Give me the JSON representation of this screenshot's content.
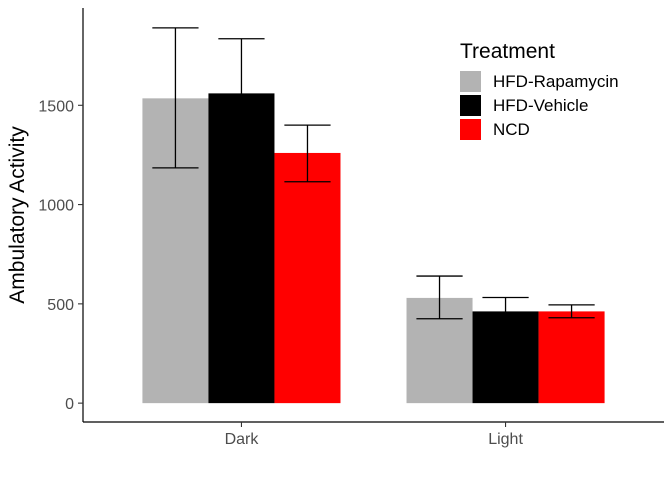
{
  "chart_data": {
    "type": "bar",
    "title": "",
    "xlabel": "",
    "ylabel": "Ambulatory Activity",
    "ylim": [
      -95,
      1990
    ],
    "yticks": [
      0,
      500,
      1000,
      1500
    ],
    "grid": false,
    "legend": {
      "title": "Treatment",
      "position": "top-right-inside"
    },
    "categories": [
      "Dark",
      "Light"
    ],
    "series": [
      {
        "name": "HFD-Rapamycin",
        "color": "#b3b3b3",
        "values": [
          1535,
          530
        ],
        "error_low": [
          1185,
          425
        ],
        "error_high": [
          1890,
          640
        ]
      },
      {
        "name": "HFD-Vehicle",
        "color": "#000000",
        "values": [
          1560,
          462
        ],
        "error_low": [
          1290,
          400
        ],
        "error_high": [
          1835,
          532
        ]
      },
      {
        "name": "NCD",
        "color": "#ff0000",
        "values": [
          1260,
          462
        ],
        "error_low": [
          1115,
          430
        ],
        "error_high": [
          1400,
          495
        ]
      }
    ]
  }
}
